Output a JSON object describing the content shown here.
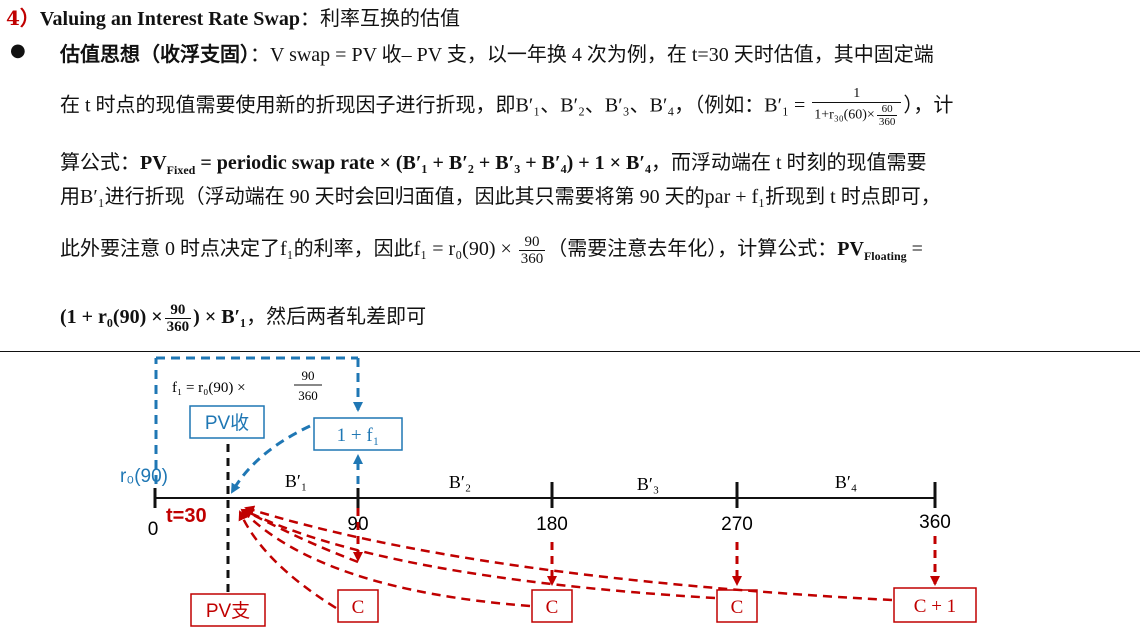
{
  "heading": {
    "number": "4）",
    "title_en": "Valuing an Interest Rate Swap",
    "colon": "：",
    "title_cn": "利率互换的估值"
  },
  "paragraph": {
    "line1_label": "估值思想（收浮支固）",
    "line1_text": "：V swap = PV 收– PV 支，以一年换 4 次为例，在 t=30 天时估值，其中固定端",
    "line2_text": "在 t 时点的现值需要使用新的折现因子进行折现，即B′₁、B′₂、B′₃、B′₄，（例如：B′₁ =",
    "line2_frac_num": "1",
    "line2_frac_den_a": "1+r₃₀(60)×",
    "line2_frac_inner_num": "60",
    "line2_frac_inner_den": "360",
    "line2_end": "），计",
    "line3_a": "算公式：",
    "line3_formula": "PV",
    "line3_sub": "Fixed",
    "line3_rest": " = periodic swap rate × (B′₁ + B′₂ + B′₃ + B′₄) + 1 × B′₄",
    "line3_end": "，而浮动端在 t 时刻的现值需要",
    "line4_text": "用B′₁进行折现（浮动端在 90 天时会回归面值，因此其只需要将第 90 天的par + f₁折现到 t 时点即可，",
    "line5_text": "此外要注意 0 时点决定了f₁的利率，因此f₁ = r₀(90) ×",
    "line5_frac_num": "90",
    "line5_frac_den": "360",
    "line5_mid": "（需要注意去年化），计算公式：",
    "line5_formula": "PV",
    "line5_sub": "Floating",
    "line5_eq": " =",
    "line6_a": "(1 + r₀(90) ×",
    "line6_frac_num": "90",
    "line6_frac_den": "360",
    "line6_b": ") × B′₁",
    "line6_end": "，然后两者轧差即可"
  },
  "diagram": {
    "f1_formula": "f₁ = r₀(90) ×",
    "f1_frac_num": "90",
    "f1_frac_den": "360",
    "pv_receive": "PV收",
    "pv_pay": "PV支",
    "one_plus_f1": "1 + f₁",
    "r0_label": "r₀(90)",
    "t30_label": "t=30",
    "ticks": [
      "0",
      "90",
      "180",
      "270",
      "360"
    ],
    "discount_labels": [
      "B′₁",
      "B′₂",
      "B′₃",
      "B′₄"
    ],
    "coupons": [
      "C",
      "C",
      "C",
      "C + 1"
    ],
    "colors": {
      "blue": "#1f77b4",
      "red": "#c00000",
      "black": "#111111"
    }
  }
}
